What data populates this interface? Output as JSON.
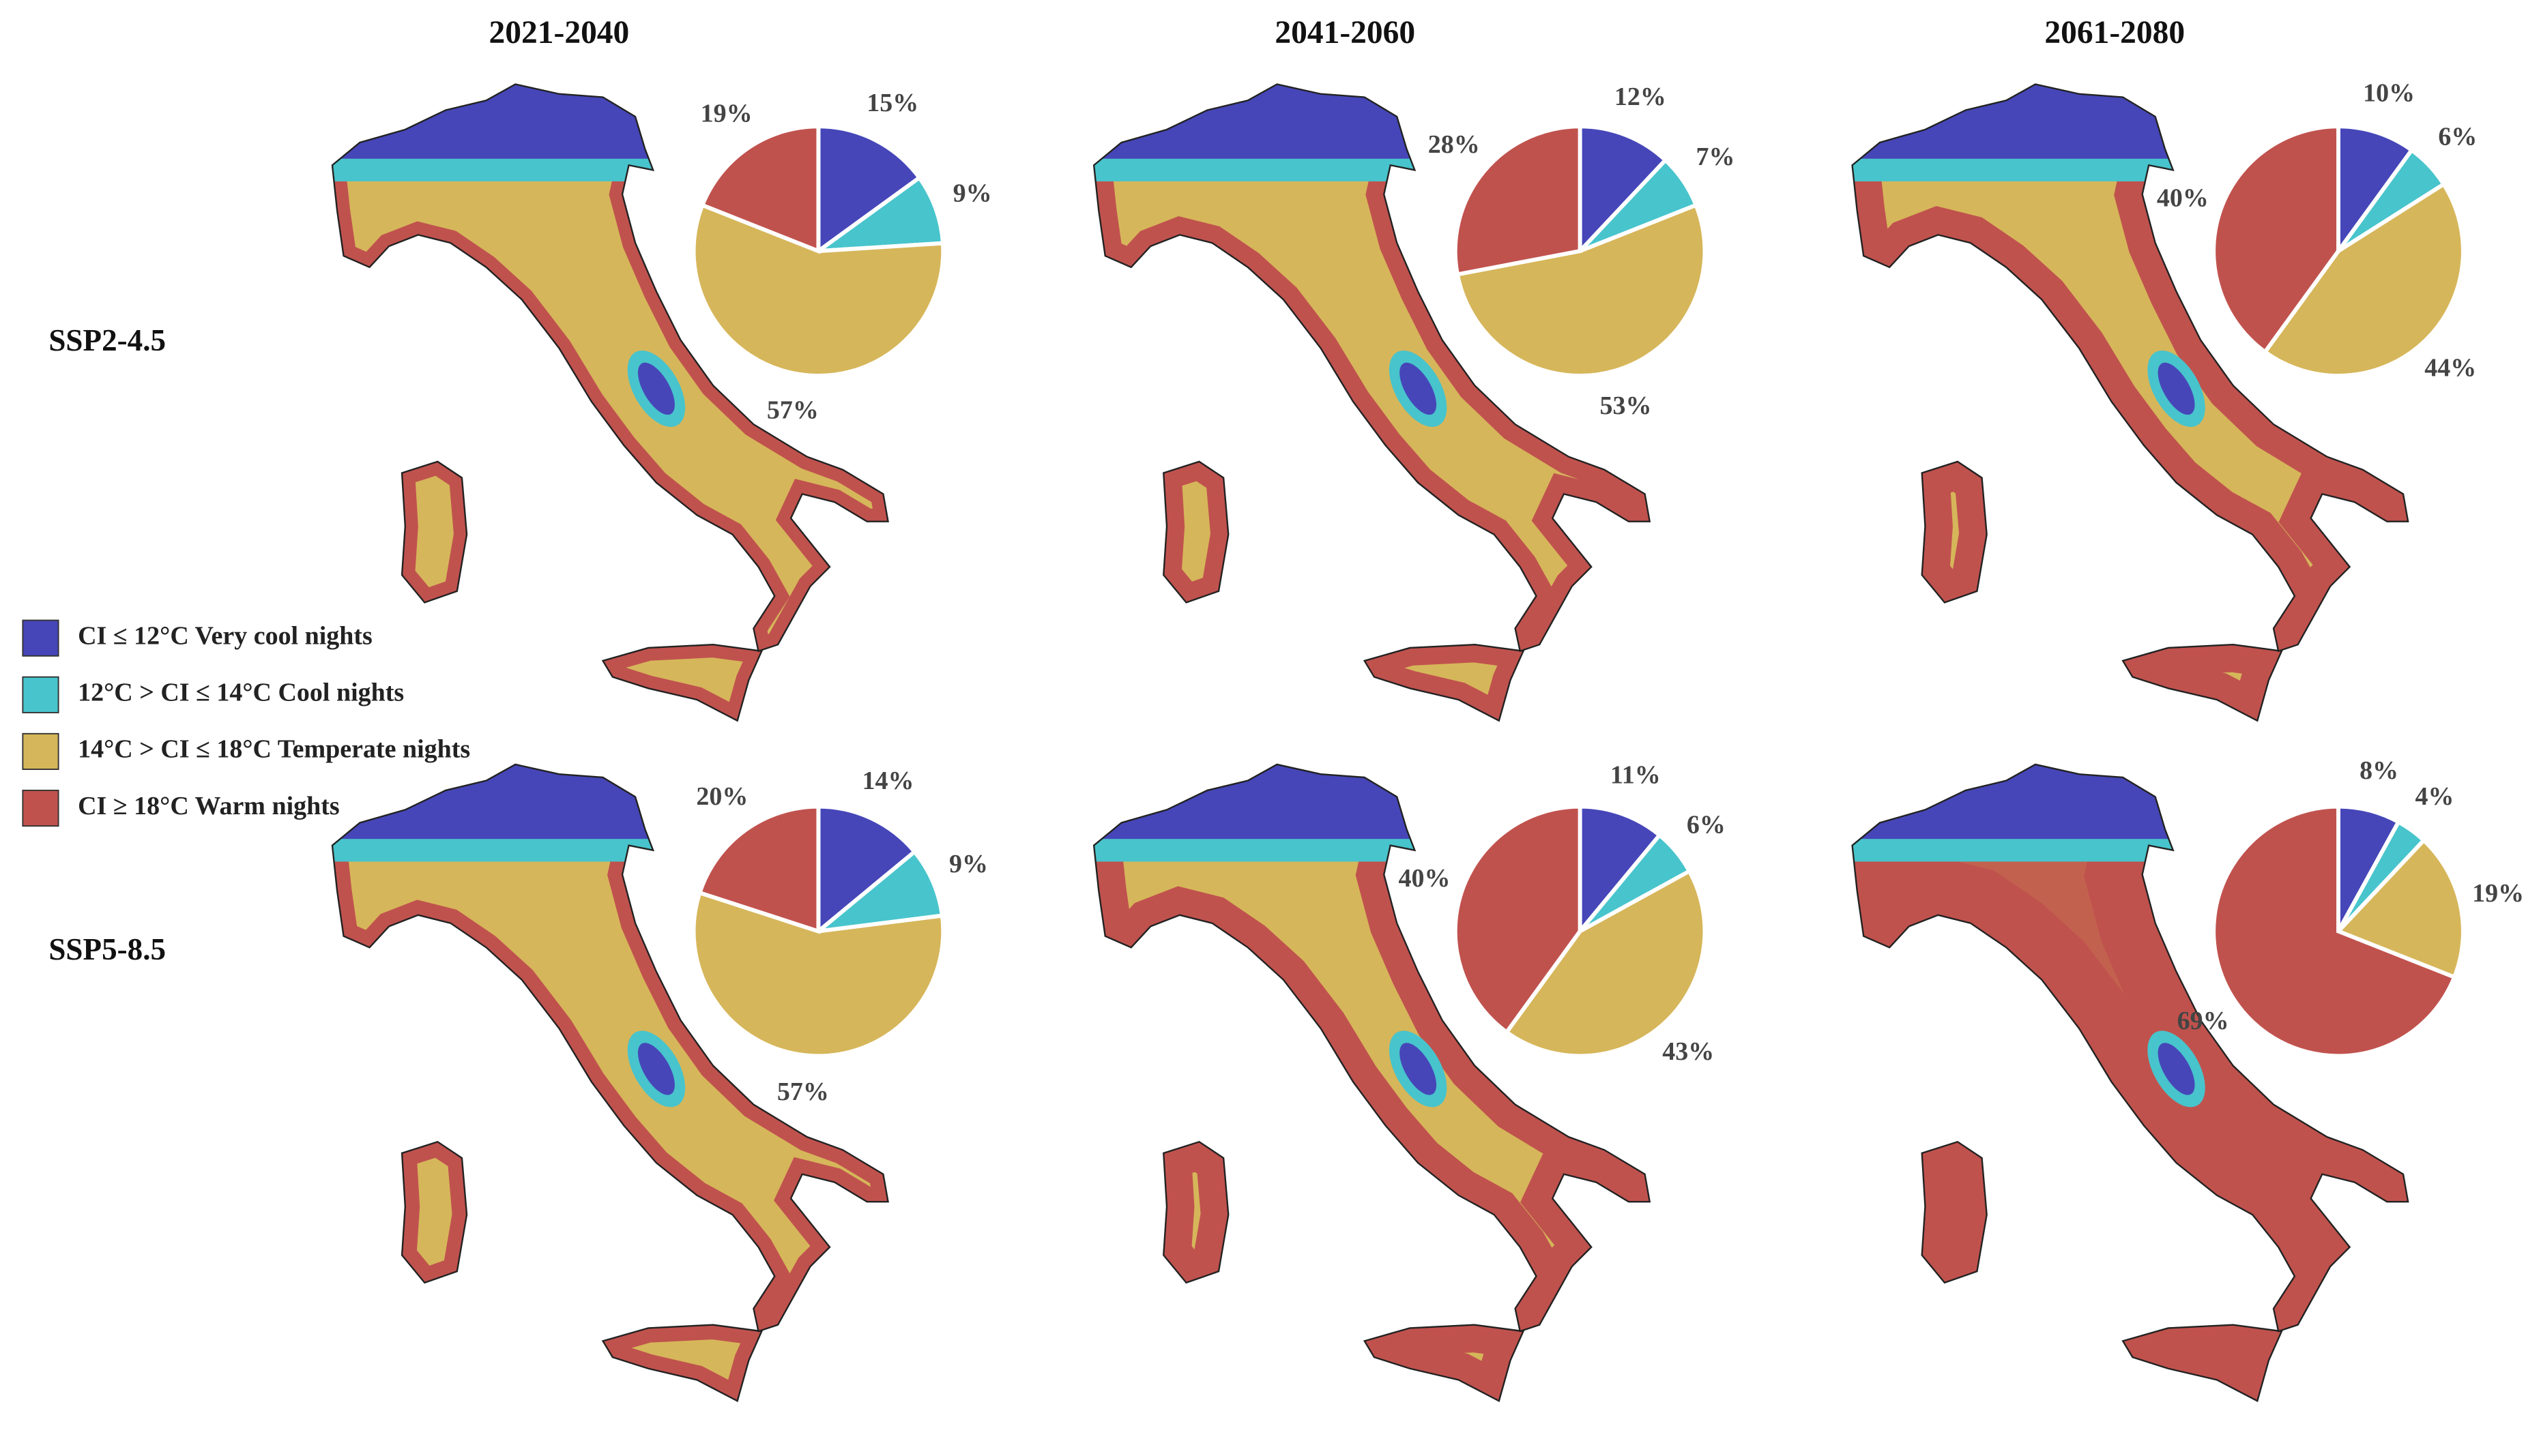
{
  "columns": [
    "2021-2040",
    "2041-2060",
    "2061-2080"
  ],
  "rows": [
    "SSP2-4.5",
    "SSP5-8.5"
  ],
  "legend": {
    "items": [
      {
        "label": "CI ≤ 12°C Very cool nights",
        "color": "#4646b9"
      },
      {
        "label": "12°C > CI ≤ 14°C Cool nights",
        "color": "#48c4cc"
      },
      {
        "label": "14°C > CI ≤ 18°C Temperate nights",
        "color": "#d6b65a"
      },
      {
        "label": "CI ≥ 18°C Warm nights",
        "color": "#c0524e"
      }
    ]
  },
  "chart_data": [
    {
      "type": "pie",
      "values": [
        15,
        9,
        57,
        19
      ],
      "value_labels": [
        "15%",
        "9%",
        "57%",
        "19%"
      ]
    },
    {
      "type": "pie",
      "values": [
        12,
        7,
        53,
        28
      ],
      "value_labels": [
        "12%",
        "7%",
        "53%",
        "28%"
      ]
    },
    {
      "type": "pie",
      "values": [
        10,
        6,
        44,
        40
      ],
      "value_labels": [
        "10%",
        "6%",
        "44%",
        "40%"
      ]
    },
    {
      "type": "pie",
      "values": [
        14,
        9,
        57,
        20
      ],
      "value_labels": [
        "14%",
        "9%",
        "57%",
        "20%"
      ]
    },
    {
      "type": "pie",
      "values": [
        11,
        6,
        43,
        40
      ],
      "value_labels": [
        "11%",
        "6%",
        "43%",
        "40%"
      ]
    },
    {
      "type": "pie",
      "values": [
        8,
        4,
        19,
        69
      ],
      "value_labels": [
        "8%",
        "4%",
        "19%",
        "69%"
      ]
    }
  ]
}
